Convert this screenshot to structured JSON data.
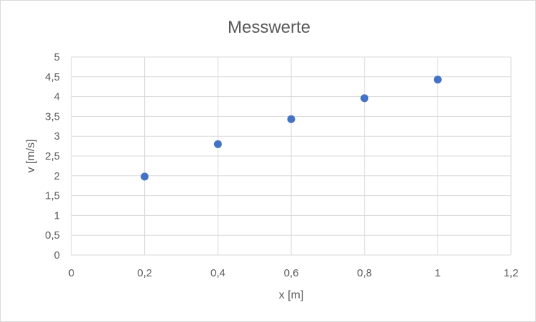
{
  "chart_data": {
    "type": "scatter",
    "title": "Messwerte",
    "xlabel": "x [m]",
    "ylabel": "v [m/s]",
    "xlim": [
      0,
      1.2
    ],
    "ylim": [
      0,
      5
    ],
    "x_ticks": [
      "0",
      "0,2",
      "0,4",
      "0,6",
      "0,8",
      "1",
      "1,2"
    ],
    "y_ticks": [
      "0",
      "0,5",
      "1",
      "1,5",
      "2",
      "2,5",
      "3",
      "3,5",
      "4",
      "4,5",
      "5"
    ],
    "grid": true,
    "legend": "none",
    "marker_color": "#4472c4",
    "series": [
      {
        "x": [
          0.2,
          0.4,
          0.6,
          0.8,
          1.0
        ],
        "y": [
          1.98,
          2.8,
          3.43,
          3.96,
          4.43
        ]
      }
    ]
  }
}
